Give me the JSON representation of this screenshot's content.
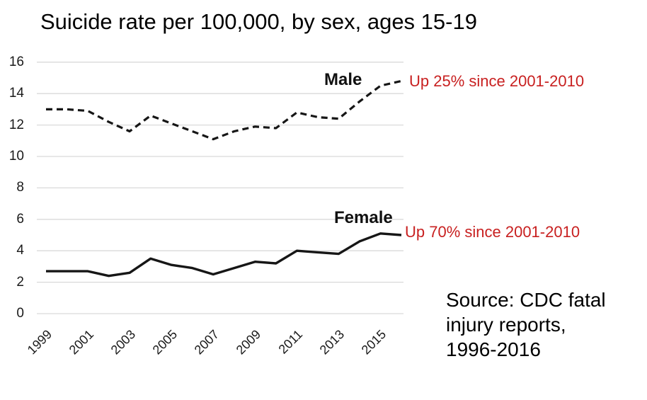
{
  "title": "Suicide rate per 100,000, by sex, ages 15-19",
  "annotations": {
    "male_label": "Male",
    "male_note": "Up 25% since 2001-2010",
    "female_label": "Female",
    "female_note": "Up 70% since 2001-2010",
    "note_color": "#c82020"
  },
  "source_lines": [
    "Source: CDC fatal",
    "injury reports,",
    "1996-2016"
  ],
  "chart_data": {
    "type": "line",
    "title": "Suicide rate per 100,000, by sex, ages 15-19",
    "x": [
      1999,
      2000,
      2001,
      2002,
      2003,
      2004,
      2005,
      2006,
      2007,
      2008,
      2009,
      2010,
      2011,
      2012,
      2013,
      2014,
      2015,
      2016
    ],
    "series": [
      {
        "name": "Male",
        "style": "dashed",
        "values": [
          13.0,
          13.0,
          12.9,
          12.2,
          11.6,
          12.6,
          12.1,
          11.6,
          11.1,
          11.6,
          11.9,
          11.8,
          12.8,
          12.5,
          12.4,
          13.5,
          14.5,
          14.8
        ],
        "annotation": "Up 25% since 2001-2010"
      },
      {
        "name": "Female",
        "style": "solid",
        "values": [
          2.7,
          2.7,
          2.7,
          2.4,
          2.6,
          3.5,
          3.1,
          2.9,
          2.5,
          2.9,
          3.3,
          3.2,
          4.0,
          3.9,
          3.8,
          4.6,
          5.1,
          5.0
        ],
        "annotation": "Up 70% since 2001-2010"
      }
    ],
    "xticks": [
      1999,
      2001,
      2003,
      2005,
      2007,
      2009,
      2011,
      2013,
      2015
    ],
    "yticks": [
      0,
      2,
      4,
      6,
      8,
      10,
      12,
      14,
      16
    ],
    "ylim": [
      0,
      16
    ],
    "xlabel": "",
    "ylabel": "",
    "grid": "horizontal",
    "legend_position": "inline-labels",
    "line_color": "#161616",
    "grid_color": "#d9d9d9",
    "source": "Source: CDC fatal injury reports, 1996-2016"
  }
}
